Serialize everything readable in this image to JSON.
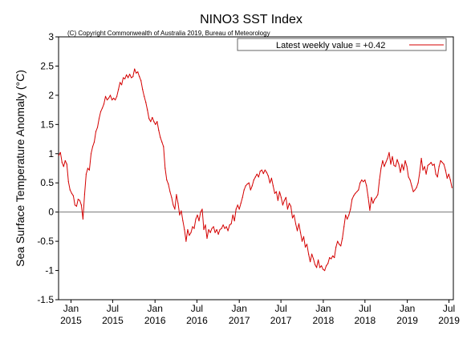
{
  "chart_data": {
    "type": "line",
    "title": "NINO3 SST Index",
    "subtitle": "(C) Copyright Commonwealth of Australia 2019, Bureau of Meteorology",
    "ylabel": "Sea Surface Temperature Anomaly (°C)",
    "ylim": [
      -1.5,
      3
    ],
    "yticks": [
      -1.5,
      -1,
      -0.5,
      0,
      0.5,
      1,
      1.5,
      2,
      2.5,
      3
    ],
    "ytick_labels": [
      "-1.5",
      "-1",
      "-0.5",
      "0",
      "0.5",
      "1",
      "1.5",
      "2",
      "2.5",
      "3"
    ],
    "xlim": [
      "2014-11-08",
      "2019-07-20"
    ],
    "xticks": [
      {
        "date": "2015-01-01",
        "month": "Jan",
        "year": "2015"
      },
      {
        "date": "2015-07-01",
        "month": "Jul",
        "year": "2015"
      },
      {
        "date": "2016-01-01",
        "month": "Jan",
        "year": "2016"
      },
      {
        "date": "2016-07-01",
        "month": "Jul",
        "year": "2016"
      },
      {
        "date": "2017-01-01",
        "month": "Jan",
        "year": "2017"
      },
      {
        "date": "2017-07-01",
        "month": "Jul",
        "year": "2017"
      },
      {
        "date": "2018-01-01",
        "month": "Jan",
        "year": "2018"
      },
      {
        "date": "2018-07-01",
        "month": "Jul",
        "year": "2018"
      },
      {
        "date": "2019-01-01",
        "month": "Jan",
        "year": "2019"
      },
      {
        "date": "2019-07-01",
        "month": "Jul",
        "year": "2019"
      }
    ],
    "zero_line": true,
    "grid": false,
    "legend": {
      "label": "Latest weekly value = +0.42",
      "placement": "top-right"
    },
    "series": [
      {
        "color": "#d40000",
        "points": [
          [
            "2014-11-09",
            0.97
          ],
          [
            "2014-11-16",
            1.02
          ],
          [
            "2014-11-23",
            0.85
          ],
          [
            "2014-11-30",
            0.78
          ],
          [
            "2014-12-07",
            0.88
          ],
          [
            "2014-12-14",
            0.82
          ],
          [
            "2014-12-21",
            0.52
          ],
          [
            "2014-12-28",
            0.38
          ],
          [
            "2015-01-04",
            0.32
          ],
          [
            "2015-01-11",
            0.28
          ],
          [
            "2015-01-18",
            0.12
          ],
          [
            "2015-01-25",
            0.1
          ],
          [
            "2015-02-01",
            0.22
          ],
          [
            "2015-02-08",
            0.2
          ],
          [
            "2015-02-15",
            0.12
          ],
          [
            "2015-02-22",
            -0.12
          ],
          [
            "2015-03-01",
            0.3
          ],
          [
            "2015-03-08",
            0.65
          ],
          [
            "2015-03-15",
            0.75
          ],
          [
            "2015-03-22",
            0.72
          ],
          [
            "2015-03-29",
            1.0
          ],
          [
            "2015-04-05",
            1.12
          ],
          [
            "2015-04-12",
            1.2
          ],
          [
            "2015-04-19",
            1.38
          ],
          [
            "2015-04-26",
            1.45
          ],
          [
            "2015-05-03",
            1.6
          ],
          [
            "2015-05-10",
            1.72
          ],
          [
            "2015-05-17",
            1.78
          ],
          [
            "2015-05-24",
            1.85
          ],
          [
            "2015-05-31",
            1.98
          ],
          [
            "2015-06-07",
            1.92
          ],
          [
            "2015-06-14",
            1.95
          ],
          [
            "2015-06-21",
            2.0
          ],
          [
            "2015-06-28",
            1.92
          ],
          [
            "2015-07-05",
            1.95
          ],
          [
            "2015-07-12",
            1.92
          ],
          [
            "2015-07-19",
            1.98
          ],
          [
            "2015-07-26",
            2.1
          ],
          [
            "2015-08-02",
            2.22
          ],
          [
            "2015-08-09",
            2.18
          ],
          [
            "2015-08-16",
            2.3
          ],
          [
            "2015-08-23",
            2.28
          ],
          [
            "2015-08-30",
            2.35
          ],
          [
            "2015-09-06",
            2.3
          ],
          [
            "2015-09-13",
            2.36
          ],
          [
            "2015-09-20",
            2.3
          ],
          [
            "2015-09-27",
            2.32
          ],
          [
            "2015-10-04",
            2.45
          ],
          [
            "2015-10-11",
            2.38
          ],
          [
            "2015-10-18",
            2.4
          ],
          [
            "2015-10-25",
            2.32
          ],
          [
            "2015-11-01",
            2.25
          ],
          [
            "2015-11-08",
            2.1
          ],
          [
            "2015-11-15",
            1.98
          ],
          [
            "2015-11-22",
            1.88
          ],
          [
            "2015-11-29",
            1.75
          ],
          [
            "2015-12-06",
            1.6
          ],
          [
            "2015-12-13",
            1.55
          ],
          [
            "2015-12-20",
            1.62
          ],
          [
            "2015-12-27",
            1.55
          ],
          [
            "2016-01-03",
            1.5
          ],
          [
            "2016-01-10",
            1.55
          ],
          [
            "2016-01-17",
            1.4
          ],
          [
            "2016-01-24",
            1.28
          ],
          [
            "2016-01-31",
            1.2
          ],
          [
            "2016-02-07",
            1.12
          ],
          [
            "2016-02-14",
            0.75
          ],
          [
            "2016-02-21",
            0.55
          ],
          [
            "2016-02-28",
            0.48
          ],
          [
            "2016-03-06",
            0.35
          ],
          [
            "2016-03-13",
            0.25
          ],
          [
            "2016-03-20",
            0.12
          ],
          [
            "2016-03-27",
            0.05
          ],
          [
            "2016-04-03",
            0.3
          ],
          [
            "2016-04-10",
            0.15
          ],
          [
            "2016-04-17",
            -0.05
          ],
          [
            "2016-04-24",
            0.02
          ],
          [
            "2016-05-01",
            -0.15
          ],
          [
            "2016-05-08",
            -0.3
          ],
          [
            "2016-05-15",
            -0.5
          ],
          [
            "2016-05-22",
            -0.3
          ],
          [
            "2016-05-29",
            -0.4
          ],
          [
            "2016-06-05",
            -0.35
          ],
          [
            "2016-06-12",
            -0.25
          ],
          [
            "2016-06-19",
            -0.28
          ],
          [
            "2016-06-26",
            -0.12
          ],
          [
            "2016-07-03",
            -0.05
          ],
          [
            "2016-07-10",
            -0.15
          ],
          [
            "2016-07-17",
            0.0
          ],
          [
            "2016-07-24",
            0.05
          ],
          [
            "2016-07-31",
            -0.3
          ],
          [
            "2016-08-07",
            -0.22
          ],
          [
            "2016-08-14",
            -0.45
          ],
          [
            "2016-08-21",
            -0.3
          ],
          [
            "2016-08-28",
            -0.35
          ],
          [
            "2016-09-04",
            -0.28
          ],
          [
            "2016-09-11",
            -0.25
          ],
          [
            "2016-09-18",
            -0.35
          ],
          [
            "2016-09-25",
            -0.3
          ],
          [
            "2016-10-02",
            -0.38
          ],
          [
            "2016-10-09",
            -0.3
          ],
          [
            "2016-10-16",
            -0.28
          ],
          [
            "2016-10-23",
            -0.22
          ],
          [
            "2016-10-30",
            -0.28
          ],
          [
            "2016-11-06",
            -0.25
          ],
          [
            "2016-11-13",
            -0.32
          ],
          [
            "2016-11-20",
            -0.22
          ],
          [
            "2016-11-27",
            -0.2
          ],
          [
            "2016-12-04",
            -0.05
          ],
          [
            "2016-12-11",
            -0.15
          ],
          [
            "2016-12-18",
            0.05
          ],
          [
            "2016-12-25",
            0.12
          ],
          [
            "2017-01-01",
            0.05
          ],
          [
            "2017-01-08",
            0.15
          ],
          [
            "2017-01-15",
            0.25
          ],
          [
            "2017-01-22",
            0.38
          ],
          [
            "2017-01-29",
            0.45
          ],
          [
            "2017-02-05",
            0.48
          ],
          [
            "2017-02-12",
            0.5
          ],
          [
            "2017-02-19",
            0.38
          ],
          [
            "2017-02-26",
            0.45
          ],
          [
            "2017-03-05",
            0.55
          ],
          [
            "2017-03-12",
            0.6
          ],
          [
            "2017-03-19",
            0.65
          ],
          [
            "2017-03-26",
            0.6
          ],
          [
            "2017-04-02",
            0.7
          ],
          [
            "2017-04-09",
            0.72
          ],
          [
            "2017-04-16",
            0.66
          ],
          [
            "2017-04-23",
            0.72
          ],
          [
            "2017-04-30",
            0.68
          ],
          [
            "2017-05-07",
            0.62
          ],
          [
            "2017-05-14",
            0.5
          ],
          [
            "2017-05-21",
            0.58
          ],
          [
            "2017-05-28",
            0.45
          ],
          [
            "2017-06-04",
            0.32
          ],
          [
            "2017-06-11",
            0.35
          ],
          [
            "2017-06-18",
            0.2
          ],
          [
            "2017-06-25",
            0.35
          ],
          [
            "2017-07-02",
            0.25
          ],
          [
            "2017-07-09",
            0.12
          ],
          [
            "2017-07-16",
            0.2
          ],
          [
            "2017-07-23",
            0.25
          ],
          [
            "2017-07-30",
            0.05
          ],
          [
            "2017-08-06",
            0.15
          ],
          [
            "2017-08-13",
            0.1
          ],
          [
            "2017-08-20",
            -0.1
          ],
          [
            "2017-08-27",
            -0.05
          ],
          [
            "2017-09-03",
            -0.2
          ],
          [
            "2017-09-10",
            -0.32
          ],
          [
            "2017-09-17",
            -0.2
          ],
          [
            "2017-09-24",
            -0.35
          ],
          [
            "2017-10-01",
            -0.5
          ],
          [
            "2017-10-08",
            -0.42
          ],
          [
            "2017-10-15",
            -0.6
          ],
          [
            "2017-10-22",
            -0.55
          ],
          [
            "2017-10-29",
            -0.72
          ],
          [
            "2017-11-05",
            -0.85
          ],
          [
            "2017-11-12",
            -0.72
          ],
          [
            "2017-11-19",
            -0.8
          ],
          [
            "2017-11-26",
            -0.9
          ],
          [
            "2017-12-03",
            -0.95
          ],
          [
            "2017-12-10",
            -0.82
          ],
          [
            "2017-12-17",
            -0.95
          ],
          [
            "2017-12-24",
            -0.92
          ],
          [
            "2017-12-31",
            -0.98
          ],
          [
            "2018-01-07",
            -1.0
          ],
          [
            "2018-01-14",
            -0.92
          ],
          [
            "2018-01-21",
            -0.88
          ],
          [
            "2018-01-28",
            -0.78
          ],
          [
            "2018-02-04",
            -0.8
          ],
          [
            "2018-02-11",
            -0.75
          ],
          [
            "2018-02-18",
            -0.78
          ],
          [
            "2018-02-25",
            -0.6
          ],
          [
            "2018-03-04",
            -0.5
          ],
          [
            "2018-03-11",
            -0.55
          ],
          [
            "2018-03-18",
            -0.58
          ],
          [
            "2018-03-25",
            -0.45
          ],
          [
            "2018-04-01",
            -0.25
          ],
          [
            "2018-04-08",
            -0.05
          ],
          [
            "2018-04-15",
            -0.12
          ],
          [
            "2018-04-22",
            -0.05
          ],
          [
            "2018-04-29",
            0.05
          ],
          [
            "2018-05-06",
            0.22
          ],
          [
            "2018-05-13",
            0.28
          ],
          [
            "2018-05-20",
            0.32
          ],
          [
            "2018-05-27",
            0.35
          ],
          [
            "2018-06-03",
            0.38
          ],
          [
            "2018-06-10",
            0.5
          ],
          [
            "2018-06-17",
            0.55
          ],
          [
            "2018-06-24",
            0.52
          ],
          [
            "2018-07-01",
            0.55
          ],
          [
            "2018-07-08",
            0.45
          ],
          [
            "2018-07-15",
            0.25
          ],
          [
            "2018-07-22",
            0.03
          ],
          [
            "2018-07-29",
            0.25
          ],
          [
            "2018-08-05",
            0.15
          ],
          [
            "2018-08-12",
            0.22
          ],
          [
            "2018-08-19",
            0.25
          ],
          [
            "2018-08-26",
            0.3
          ],
          [
            "2018-09-02",
            0.55
          ],
          [
            "2018-09-09",
            0.75
          ],
          [
            "2018-09-16",
            0.88
          ],
          [
            "2018-09-23",
            0.78
          ],
          [
            "2018-09-30",
            0.85
          ],
          [
            "2018-10-07",
            0.92
          ],
          [
            "2018-10-14",
            1.02
          ],
          [
            "2018-10-21",
            0.82
          ],
          [
            "2018-10-28",
            0.95
          ],
          [
            "2018-11-04",
            0.8
          ],
          [
            "2018-11-11",
            0.78
          ],
          [
            "2018-11-18",
            0.9
          ],
          [
            "2018-11-25",
            0.82
          ],
          [
            "2018-12-02",
            0.68
          ],
          [
            "2018-12-09",
            0.82
          ],
          [
            "2018-12-16",
            0.72
          ],
          [
            "2018-12-23",
            0.88
          ],
          [
            "2018-12-30",
            0.78
          ],
          [
            "2019-01-06",
            0.6
          ],
          [
            "2019-01-13",
            0.55
          ],
          [
            "2019-01-20",
            0.45
          ],
          [
            "2019-01-27",
            0.35
          ],
          [
            "2019-02-03",
            0.38
          ],
          [
            "2019-02-10",
            0.42
          ],
          [
            "2019-02-17",
            0.5
          ],
          [
            "2019-02-24",
            0.68
          ],
          [
            "2019-03-03",
            0.92
          ],
          [
            "2019-03-10",
            0.72
          ],
          [
            "2019-03-17",
            0.78
          ],
          [
            "2019-03-24",
            0.65
          ],
          [
            "2019-03-31",
            0.8
          ],
          [
            "2019-04-07",
            0.82
          ],
          [
            "2019-04-14",
            0.85
          ],
          [
            "2019-04-21",
            0.8
          ],
          [
            "2019-04-28",
            0.82
          ],
          [
            "2019-05-05",
            0.65
          ],
          [
            "2019-05-12",
            0.6
          ],
          [
            "2019-05-19",
            0.78
          ],
          [
            "2019-05-26",
            0.88
          ],
          [
            "2019-06-02",
            0.85
          ],
          [
            "2019-06-09",
            0.82
          ],
          [
            "2019-06-16",
            0.72
          ],
          [
            "2019-06-23",
            0.58
          ],
          [
            "2019-06-30",
            0.65
          ],
          [
            "2019-07-07",
            0.55
          ],
          [
            "2019-07-14",
            0.42
          ]
        ]
      }
    ]
  }
}
